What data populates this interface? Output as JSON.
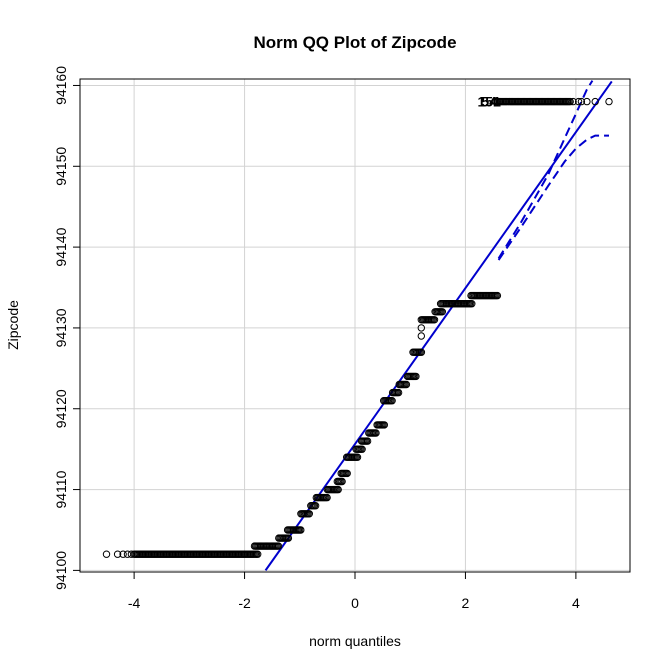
{
  "chart_data": {
    "type": "scatter",
    "title": "Norm QQ Plot of Zipcode",
    "xlabel": "norm quantiles",
    "ylabel": "Zipcode",
    "xlim": [
      -4.98,
      4.98
    ],
    "ylim": [
      94099.8,
      94160.8
    ],
    "x_ticks": [
      -4,
      -2,
      0,
      2,
      4
    ],
    "y_ticks": [
      94100,
      94110,
      94120,
      94130,
      94140,
      94150,
      94160
    ],
    "grid": true,
    "colors": {
      "points": "#000000",
      "reference_line": "#0000cd",
      "grid": "#d3d3d3",
      "frame": "#000000"
    },
    "point_runs": [
      {
        "y": 94102,
        "x_start": -4.0,
        "x_end": -1.75
      },
      {
        "y": 94103,
        "x_start": -1.82,
        "x_end": -1.38
      },
      {
        "y": 94104,
        "x_start": -1.38,
        "x_end": -1.2
      },
      {
        "y": 94105,
        "x_start": -1.22,
        "x_end": -0.98
      },
      {
        "y": 94107,
        "x_start": -0.98,
        "x_end": -0.82
      },
      {
        "y": 94108,
        "x_start": -0.8,
        "x_end": -0.7
      },
      {
        "y": 94109,
        "x_start": -0.7,
        "x_end": -0.5
      },
      {
        "y": 94110,
        "x_start": -0.5,
        "x_end": -0.3
      },
      {
        "y": 94111,
        "x_start": -0.32,
        "x_end": -0.22
      },
      {
        "y": 94112,
        "x_start": -0.25,
        "x_end": -0.12
      },
      {
        "y": 94114,
        "x_start": -0.15,
        "x_end": 0.05
      },
      {
        "y": 94115,
        "x_start": 0.02,
        "x_end": 0.14
      },
      {
        "y": 94116,
        "x_start": 0.12,
        "x_end": 0.25
      },
      {
        "y": 94117,
        "x_start": 0.25,
        "x_end": 0.4
      },
      {
        "y": 94118,
        "x_start": 0.4,
        "x_end": 0.55
      },
      {
        "y": 94121,
        "x_start": 0.52,
        "x_end": 0.68
      },
      {
        "y": 94122,
        "x_start": 0.68,
        "x_end": 0.8
      },
      {
        "y": 94123,
        "x_start": 0.8,
        "x_end": 0.95
      },
      {
        "y": 94124,
        "x_start": 0.95,
        "x_end": 1.12
      },
      {
        "y": 94127,
        "x_start": 1.05,
        "x_end": 1.22
      },
      {
        "y": 94131,
        "x_start": 1.2,
        "x_end": 1.45
      },
      {
        "y": 94132,
        "x_start": 1.45,
        "x_end": 1.6
      },
      {
        "y": 94133,
        "x_start": 1.55,
        "x_end": 2.12
      },
      {
        "y": 94134,
        "x_start": 2.1,
        "x_end": 2.58
      },
      {
        "y": 94158,
        "x_start": 2.55,
        "x_end": 3.9
      }
    ],
    "sparse_points": [
      {
        "x": -4.5,
        "y": 94102
      },
      {
        "x": -4.3,
        "y": 94102
      },
      {
        "x": -4.2,
        "y": 94102
      },
      {
        "x": -4.12,
        "y": 94102
      },
      {
        "x": -4.05,
        "y": 94102
      },
      {
        "x": 1.2,
        "y": 94129
      },
      {
        "x": 1.2,
        "y": 94130
      },
      {
        "x": 3.95,
        "y": 94158
      },
      {
        "x": 4.05,
        "y": 94158
      },
      {
        "x": 4.1,
        "y": 94158
      },
      {
        "x": 4.2,
        "y": 94158
      },
      {
        "x": 4.35,
        "y": 94158
      },
      {
        "x": 4.6,
        "y": 94158
      }
    ],
    "reference_line": {
      "x": [
        -1.62,
        4.65
      ],
      "y": [
        94100,
        94160.5
      ]
    },
    "confidence_band": {
      "upper": {
        "x": [
          2.6,
          3.0,
          3.5,
          3.8,
          4.0,
          4.2,
          4.3
        ],
        "y": [
          94138.6,
          94143.0,
          94149.0,
          94153.5,
          94156.5,
          94159.5,
          94160.6
        ]
      },
      "lower": {
        "x": [
          2.6,
          3.0,
          3.5,
          3.8,
          4.0,
          4.2,
          4.35,
          4.6
        ],
        "y": [
          94138.4,
          94142.4,
          94147.6,
          94150.6,
          94152.2,
          94153.3,
          94153.8,
          94153.8
        ]
      }
    },
    "annotations": [
      {
        "text": "151",
        "x": 2.43,
        "y": 94158
      },
      {
        "text": "54",
        "x": 2.43,
        "y": 94158
      }
    ]
  }
}
